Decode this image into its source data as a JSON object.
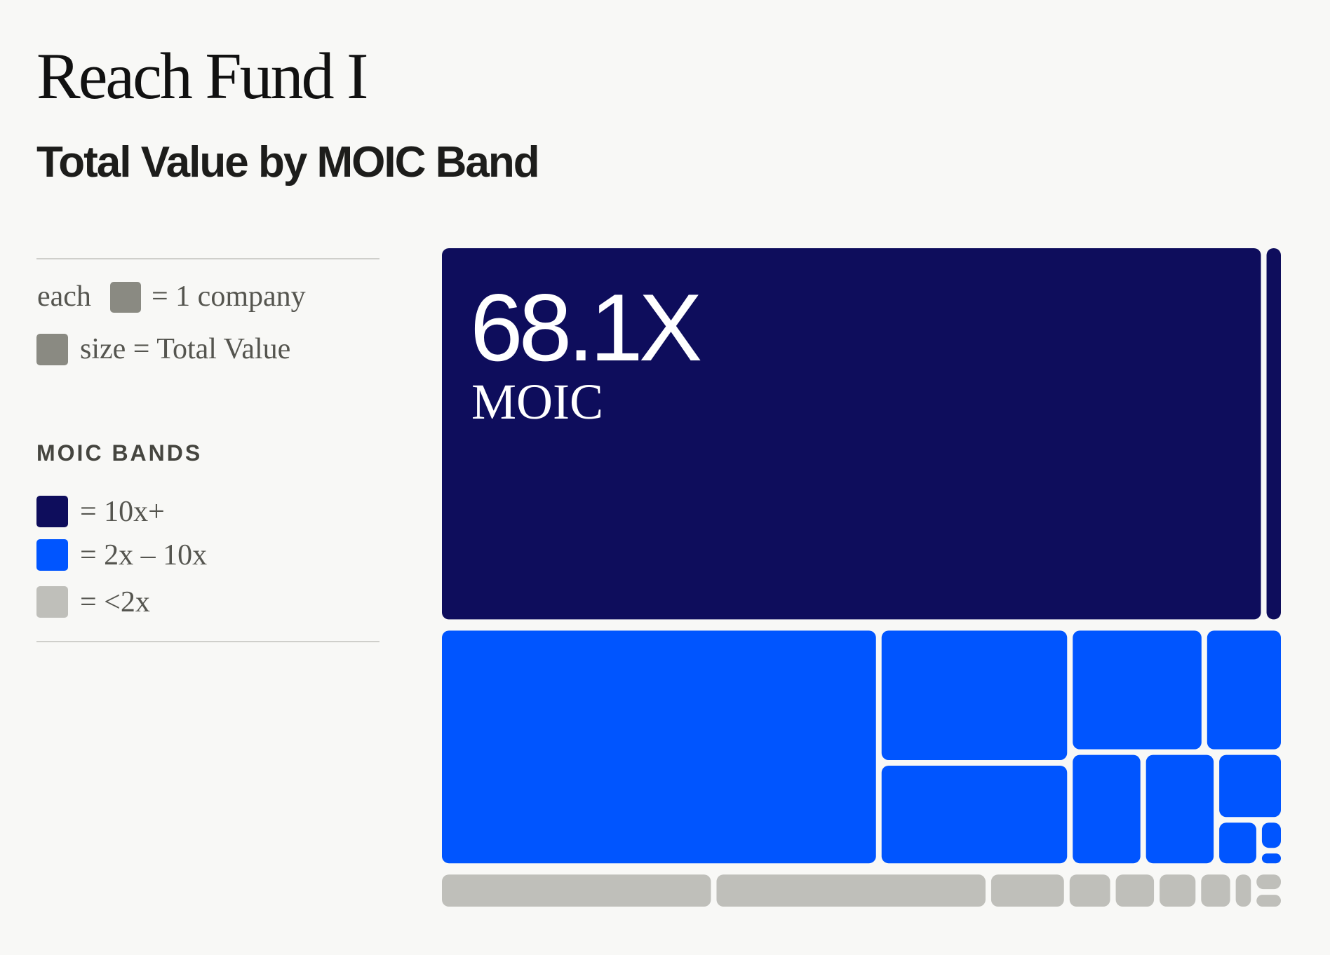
{
  "chart_data": {
    "type": "treemap",
    "title": "Reach Fund I",
    "subtitle": "Total Value by MOIC Band",
    "legend_notes": {
      "each": "each",
      "company": "= 1 company",
      "size": "size = Total Value"
    },
    "legend_title": "MOIC BANDS",
    "annotation": {
      "label": "68.1X",
      "caption": "MOIC"
    },
    "series": [
      {
        "name": "= 10x+",
        "color": "#0e0d5c",
        "values": [
          413,
          10
        ]
      },
      {
        "name": "= 2x – 10x",
        "color": "#0055ff",
        "values": [
          138,
          34,
          26,
          22,
          13,
          11,
          11,
          6,
          2.6,
          1.0,
          0.5
        ]
      },
      {
        "name": "= <2x",
        "color": "#bfbfba",
        "values": [
          11.9,
          11.9,
          3.4,
          2.0,
          1.9,
          1.8,
          1.5,
          0.9,
          0.7,
          0.6
        ]
      }
    ]
  }
}
